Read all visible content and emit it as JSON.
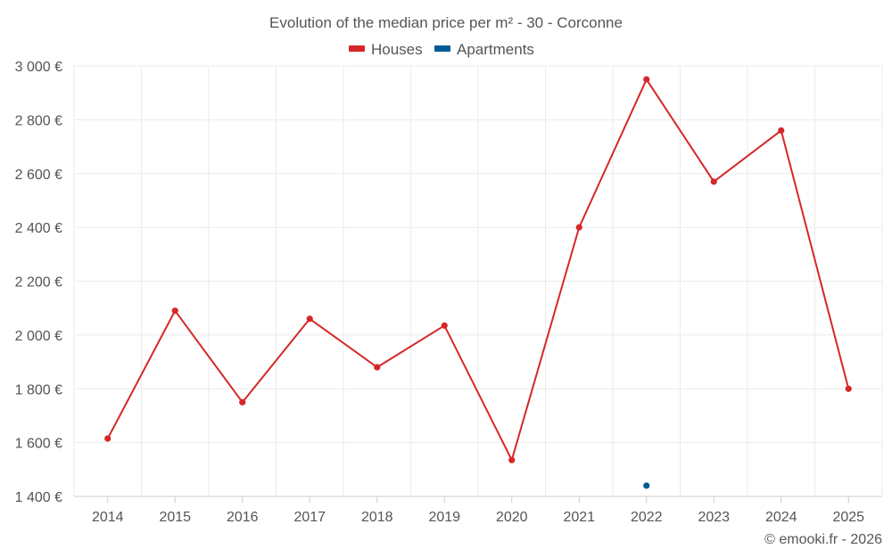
{
  "chart_data": {
    "type": "line",
    "title": "Evolution of the median price per m² - 30 - Corconne",
    "categories": [
      "2014",
      "2015",
      "2016",
      "2017",
      "2018",
      "2019",
      "2020",
      "2021",
      "2022",
      "2023",
      "2024",
      "2025"
    ],
    "series": [
      {
        "name": "Houses",
        "color": "#d62728",
        "values": [
          1615,
          2090,
          1750,
          2060,
          1880,
          2035,
          1535,
          2400,
          2950,
          2570,
          2760,
          1800
        ]
      },
      {
        "name": "Apartments",
        "color": "#005b96",
        "values": [
          null,
          null,
          null,
          null,
          null,
          null,
          null,
          null,
          1440,
          null,
          null,
          null
        ]
      }
    ],
    "ylim": [
      1400,
      3000
    ],
    "yticks": [
      1400,
      1600,
      1800,
      2000,
      2200,
      2400,
      2600,
      2800,
      3000
    ],
    "ytick_labels": [
      "1 400 €",
      "1 600 €",
      "1 800 €",
      "2 000 €",
      "2 200 €",
      "2 400 €",
      "2 600 €",
      "2 800 €",
      "3 000 €"
    ],
    "legend_position": "top-center",
    "grid": true
  },
  "credit": "© emooki.fr - 2026"
}
